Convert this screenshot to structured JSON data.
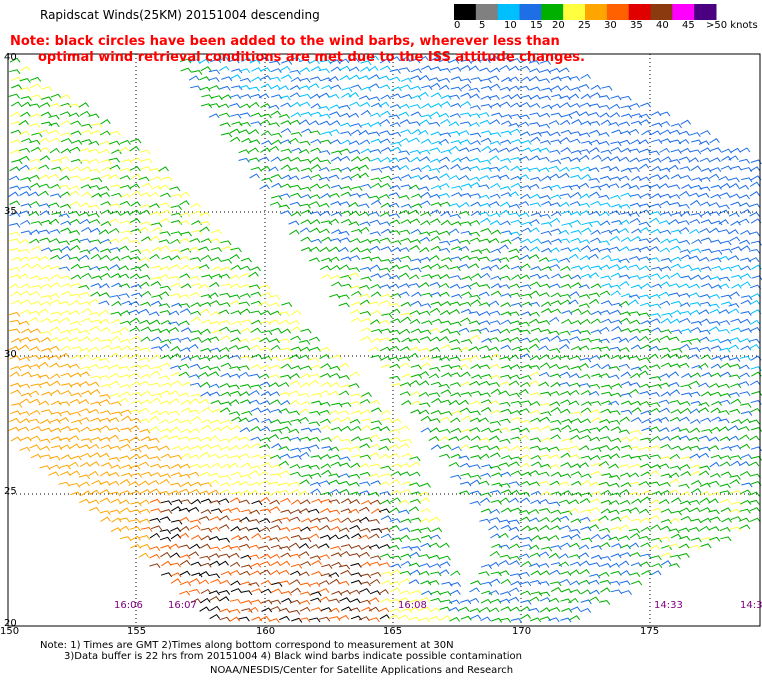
{
  "title": "Rapidscat Winds(25KM) 20151004 descending",
  "note": {
    "line1": "Note: black circles have been added to the wind barbs, wherever less than",
    "line2": "optimal wind retrieval conditions are met due to the ISS attitude changes."
  },
  "colorbar": {
    "labels": [
      "0",
      "5",
      "10",
      "15",
      "20",
      "25",
      "30",
      "35",
      "40",
      "45",
      ">50 knots"
    ],
    "colors": [
      "#000000",
      "#808080",
      "#00bfff",
      "#1e6ee6",
      "#00b000",
      "#ffff40",
      "#ffa500",
      "#ff6000",
      "#e00000",
      "#8b3a10",
      "#ff00ff",
      "#4b0082"
    ]
  },
  "lat_labels": [
    "40",
    "35",
    "30",
    "25",
    "20"
  ],
  "lon_labels": [
    "150",
    "155",
    "160",
    "165",
    "170",
    "175"
  ],
  "time_labels": [
    "16:06",
    "16:07",
    "16:08",
    "14:33",
    "14:3"
  ],
  "footer": {
    "line1": "Note: 1) Times are GMT 2)Times along bottom correspond to measurement at 30N",
    "line2": "3)Data buffer is 22 hrs from 20151004 4) Black wind barbs indicate possible contamination",
    "line3": "NOAA/NESDIS/Center for Satellite Applications and Research"
  }
}
